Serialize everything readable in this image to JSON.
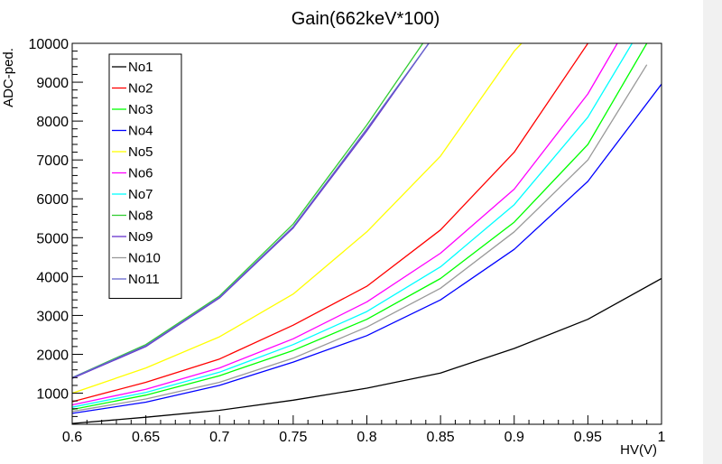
{
  "chart_data": {
    "type": "line",
    "title": "Gain(662keV*100)",
    "xlabel": "HV(V)",
    "ylabel": "ADC-ped.",
    "xlim": [
      0.6,
      1.0
    ],
    "ylim": [
      200,
      10000
    ],
    "xticks": [
      "0.6",
      "0.65",
      "0.7",
      "0.75",
      "0.8",
      "0.85",
      "0.9",
      "0.95",
      "1"
    ],
    "yticks": [
      "1000",
      "2000",
      "3000",
      "4000",
      "5000",
      "6000",
      "7000",
      "8000",
      "9000",
      "10000"
    ],
    "legend_position": "top-left",
    "grid": false,
    "series": [
      {
        "name": "No1",
        "color": "#000000",
        "x": [
          0.6,
          0.65,
          0.7,
          0.75,
          0.8,
          0.85,
          0.9,
          0.95,
          1.0
        ],
        "y": [
          220,
          380,
          560,
          820,
          1130,
          1520,
          2150,
          2900,
          3950
        ]
      },
      {
        "name": "No2",
        "color": "#ff0000",
        "x": [
          0.6,
          0.65,
          0.7,
          0.75,
          0.8,
          0.85,
          0.9,
          0.95
        ],
        "y": [
          780,
          1280,
          1880,
          2750,
          3750,
          5200,
          7200,
          10000
        ]
      },
      {
        "name": "No3",
        "color": "#00ff00",
        "x": [
          0.6,
          0.65,
          0.7,
          0.75,
          0.8,
          0.85,
          0.9,
          0.95,
          0.99
        ],
        "y": [
          580,
          950,
          1450,
          2100,
          2900,
          3950,
          5400,
          7400,
          10000
        ]
      },
      {
        "name": "No4",
        "color": "#0000ff",
        "x": [
          0.6,
          0.65,
          0.7,
          0.75,
          0.8,
          0.85,
          0.9,
          0.95,
          1.0
        ],
        "y": [
          480,
          770,
          1200,
          1800,
          2480,
          3400,
          4700,
          6450,
          8950
        ]
      },
      {
        "name": "No5",
        "color": "#ffff00",
        "x": [
          0.6,
          0.65,
          0.7,
          0.75,
          0.8,
          0.85,
          0.9,
          0.905
        ],
        "y": [
          1000,
          1650,
          2450,
          3550,
          5150,
          7100,
          9800,
          10000
        ]
      },
      {
        "name": "No6",
        "color": "#ff00ff",
        "x": [
          0.6,
          0.65,
          0.7,
          0.75,
          0.8,
          0.85,
          0.9,
          0.95,
          0.97
        ],
        "y": [
          700,
          1100,
          1650,
          2400,
          3350,
          4600,
          6250,
          8700,
          10000
        ]
      },
      {
        "name": "No7",
        "color": "#00ffff",
        "x": [
          0.6,
          0.65,
          0.7,
          0.75,
          0.8,
          0.85,
          0.9,
          0.95,
          0.98
        ],
        "y": [
          640,
          1020,
          1540,
          2250,
          3100,
          4250,
          5850,
          8100,
          10000
        ]
      },
      {
        "name": "No8",
        "color": "#33cc33",
        "x": [
          0.6,
          0.65,
          0.7,
          0.75,
          0.8,
          0.838
        ],
        "y": [
          1400,
          2250,
          3500,
          5350,
          7900,
          10000
        ]
      },
      {
        "name": "No9",
        "color": "#6633cc",
        "x": [
          0.6,
          0.65,
          0.7,
          0.75,
          0.8,
          0.842
        ],
        "y": [
          1380,
          2200,
          3450,
          5250,
          7750,
          10000
        ]
      },
      {
        "name": "No10",
        "color": "#999999",
        "x": [
          0.6,
          0.65,
          0.7,
          0.75,
          0.8,
          0.85,
          0.9,
          0.95,
          0.99
        ],
        "y": [
          530,
          850,
          1280,
          1900,
          2700,
          3700,
          5150,
          7000,
          9450
        ]
      },
      {
        "name": "No11",
        "color": "#6666cc",
        "x": [
          0.6,
          0.65,
          0.7,
          0.75,
          0.8,
          0.842
        ],
        "y": [
          1400,
          2220,
          3470,
          5280,
          7800,
          10000
        ]
      }
    ]
  }
}
